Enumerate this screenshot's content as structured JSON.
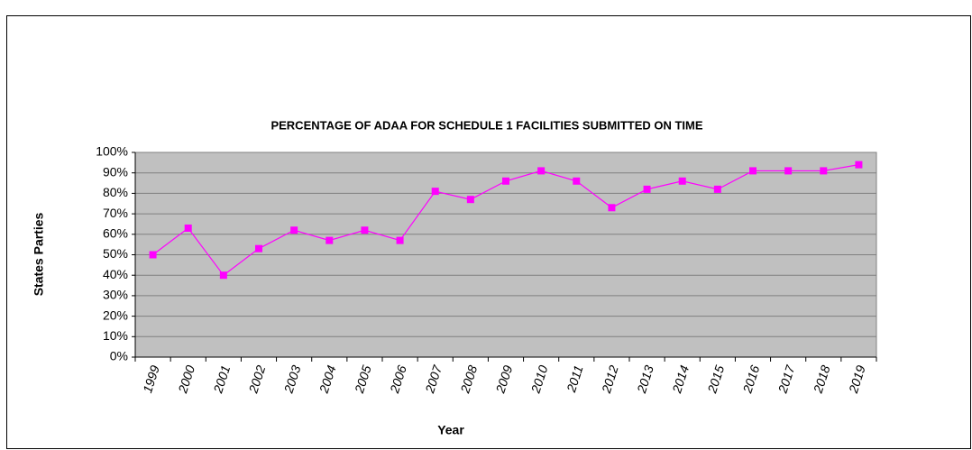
{
  "chart_data": {
    "type": "line",
    "title": "PERCENTAGE  OF ADAA FOR SCHEDULE 1 FACILITIES SUBMITTED ON TIME",
    "xlabel": "Year",
    "ylabel": "States Parties",
    "categories": [
      "1999",
      "2000",
      "2001",
      "2002",
      "2003",
      "2004",
      "2005",
      "2006",
      "2007",
      "2008",
      "2009",
      "2010",
      "2011",
      "2012",
      "2013",
      "2014",
      "2015",
      "2016",
      "2017",
      "2018",
      "2019"
    ],
    "series": [
      {
        "name": "States Parties",
        "color": "#ff00ff",
        "values": [
          50,
          63,
          40,
          53,
          62,
          57,
          62,
          57,
          81,
          77,
          86,
          91,
          86,
          73,
          82,
          86,
          82,
          91,
          91,
          91,
          94
        ]
      }
    ],
    "ylim": [
      0,
      100
    ],
    "yticks": [
      {
        "value": 0,
        "label": "0%"
      },
      {
        "value": 10,
        "label": "10%"
      },
      {
        "value": 20,
        "label": "20%"
      },
      {
        "value": 30,
        "label": "30%"
      },
      {
        "value": 40,
        "label": "40%"
      },
      {
        "value": 50,
        "label": "50%"
      },
      {
        "value": 60,
        "label": "60%"
      },
      {
        "value": 70,
        "label": "70%"
      },
      {
        "value": 80,
        "label": "80%"
      },
      {
        "value": 90,
        "label": "90%"
      },
      {
        "value": 100,
        "label": "100%"
      }
    ],
    "grid": true
  }
}
